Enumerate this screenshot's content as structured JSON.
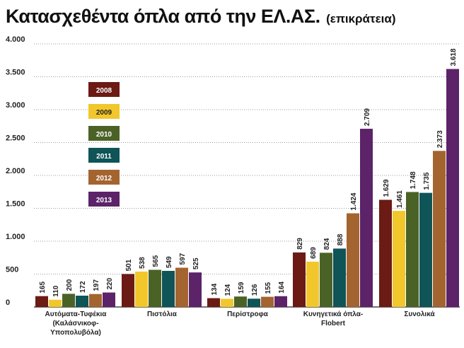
{
  "chart_data": {
    "type": "bar",
    "title": "Κατασχεθέντα όπλα από την ΕΛ.ΑΣ.",
    "subtitle": "(επικράτεια)",
    "categories": [
      [
        "Αυτόματα-Τυφέκια",
        "(Καλάσνικοφ-",
        "Υποπολυβόλα)"
      ],
      [
        "Πιστόλια"
      ],
      [
        "Περίστροφα"
      ],
      [
        "Κυνηγετικά όπλα-",
        "Flobert"
      ],
      [
        "Συνολικά"
      ]
    ],
    "ylim": [
      0,
      4000
    ],
    "yticks": [
      {
        "value": 0,
        "label": "0"
      },
      {
        "value": 500,
        "label": "500"
      },
      {
        "value": 1000,
        "label": "1.000"
      },
      {
        "value": 1500,
        "label": "1.500"
      },
      {
        "value": 2000,
        "label": "2.000"
      },
      {
        "value": 2500,
        "label": "2.500"
      },
      {
        "value": 3000,
        "label": "3.000"
      },
      {
        "value": 3500,
        "label": "3.500"
      },
      {
        "value": 4000,
        "label": "4.000"
      }
    ],
    "legend_position": "top-left",
    "grid": "horizontal dotted",
    "series": [
      {
        "name": "2008",
        "color": "#6b1a14",
        "values": [
          165,
          501,
          134,
          829,
          1629
        ],
        "labels": [
          "165",
          "501",
          "134",
          "829",
          "1.629"
        ]
      },
      {
        "name": "2009",
        "color": "#f2c72c",
        "values": [
          110,
          538,
          124,
          689,
          1461
        ],
        "labels": [
          "110",
          "538",
          "124",
          "689",
          "1.461"
        ]
      },
      {
        "name": "2010",
        "color": "#4b6227",
        "values": [
          200,
          565,
          159,
          824,
          1748
        ],
        "labels": [
          "200",
          "565",
          "159",
          "824",
          "1.748"
        ]
      },
      {
        "name": "2011",
        "color": "#0f5457",
        "values": [
          172,
          549,
          126,
          888,
          1735
        ],
        "labels": [
          "172",
          "549",
          "126",
          "888",
          "1.735"
        ]
      },
      {
        "name": "2012",
        "color": "#a46430",
        "values": [
          197,
          597,
          155,
          1424,
          2373
        ],
        "labels": [
          "197",
          "597",
          "155",
          "1.424",
          "2.373"
        ]
      },
      {
        "name": "2013",
        "color": "#5c2369",
        "values": [
          220,
          525,
          164,
          2709,
          3618
        ],
        "labels": [
          "220",
          "525",
          "164",
          "2.709",
          "3.618"
        ]
      }
    ]
  }
}
